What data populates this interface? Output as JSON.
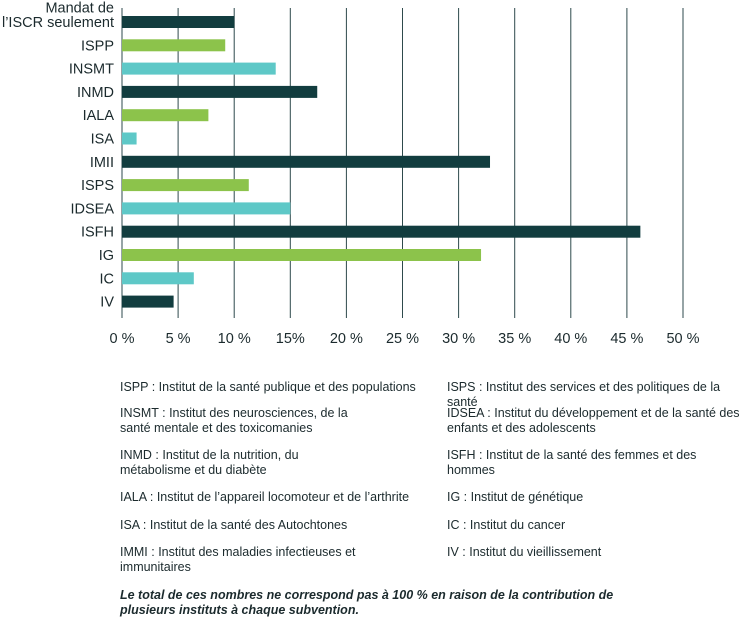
{
  "chart_data": {
    "type": "bar",
    "orientation": "horizontal",
    "categories": [
      "Mandat de l’ISCR seulement",
      "ISPP",
      "INSMT",
      "INMD",
      "IALA",
      "ISA",
      "IMII",
      "ISPS",
      "IDSEA",
      "ISFH",
      "IG",
      "IC",
      "IV"
    ],
    "category_lines": [
      [
        "Mandat de",
        "l’ISCR seulement"
      ],
      [
        "ISPP"
      ],
      [
        "INSMT"
      ],
      [
        "INMD"
      ],
      [
        "IALA"
      ],
      [
        "ISA"
      ],
      [
        "IMII"
      ],
      [
        "ISPS"
      ],
      [
        "IDSEA"
      ],
      [
        "ISFH"
      ],
      [
        "IG"
      ],
      [
        "IC"
      ],
      [
        "IV"
      ]
    ],
    "values": [
      10,
      9.2,
      13.7,
      17.4,
      7.7,
      1.3,
      32.8,
      11.3,
      15.0,
      46.2,
      32.0,
      6.4,
      4.6
    ],
    "bar_colors": [
      "#123d3f",
      "#8cc34b",
      "#5ec8c7",
      "#123d3f",
      "#8cc34b",
      "#5ec8c7",
      "#123d3f",
      "#8cc34b",
      "#5ec8c7",
      "#123d3f",
      "#8cc34b",
      "#5ec8c7",
      "#123d3f"
    ],
    "x_ticks": [
      0,
      5,
      10,
      15,
      20,
      25,
      30,
      35,
      40,
      45,
      50
    ],
    "x_tick_labels": [
      "0 %",
      "5 %",
      "10 %",
      "15%",
      "20 %",
      "25 %",
      "30 %",
      "35 %",
      "40 %",
      "45 %",
      "50 %"
    ],
    "xlim": [
      0,
      50
    ],
    "grid": true,
    "title": "",
    "xlabel": "",
    "ylabel": "",
    "colors": {
      "dark": "#123d3f",
      "green": "#8cc34b",
      "teal": "#5ec8c7",
      "grid": "#2e4a4c",
      "text": "#1b2a2d"
    }
  },
  "legend": {
    "left": [
      {
        "line1": "ISPP : Institut de la santé publique et des populations",
        "line2": ""
      },
      {
        "line1": "INSMT : Institut des neurosciences, de la",
        "line2": "santé mentale et des toxicomanies"
      },
      {
        "line1": "INMD : Institut de la nutrition, du",
        "line2": "métabolisme et du diabète"
      },
      {
        "line1": "IALA : Institut de l’appareil locomoteur et de l’arthrite",
        "line2": ""
      },
      {
        "line1": "ISA : Institut de la santé des Autochtones",
        "line2": ""
      },
      {
        "line1": "IMMI : Institut des maladies infectieuses et",
        "line2": "immunitaires"
      }
    ],
    "right": [
      {
        "line1": "ISPS : Institut des services et des politiques de la santé",
        "line2": ""
      },
      {
        "line1": "IDSEA : Institut du développement et de la santé des",
        "line2": "enfants et des adolescents"
      },
      {
        "line1": "ISFH : Institut de la santé des femmes et des",
        "line2": "hommes"
      },
      {
        "line1": "IG : Institut de génétique",
        "line2": ""
      },
      {
        "line1": "IC : Institut du cancer",
        "line2": ""
      },
      {
        "line1": "IV : Institut du vieillissement",
        "line2": ""
      }
    ]
  },
  "footnote": {
    "line1": "Le total de ces nombres ne correspond pas à 100 % en raison de la contribution de",
    "line2": "plusieurs instituts à chaque subvention."
  }
}
